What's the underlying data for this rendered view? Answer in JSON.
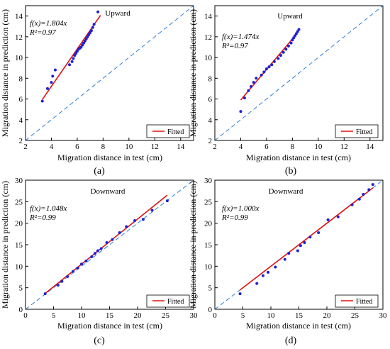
{
  "colors": {
    "points": "#1f1fd6",
    "fit": "#e01010",
    "diagonal": "#2b7bd6",
    "axis": "#000000"
  },
  "chart_data": [
    {
      "type": "scatter",
      "label": "(a)",
      "direction": "Upward",
      "xlabel": "Migration distance in test (cm)",
      "ylabel": "Migration distance in prediction (cm)",
      "xlim": [
        2,
        15
      ],
      "ylim": [
        2,
        15
      ],
      "xticks": [
        2,
        4,
        6,
        8,
        10,
        12,
        14
      ],
      "yticks": [
        2,
        4,
        6,
        8,
        10,
        12,
        14
      ],
      "equation": "f(x)=1.804x",
      "r2": "R²=0.97",
      "legend": "Fitted",
      "fit": {
        "x": [
          3.3,
          7.8
        ],
        "y": [
          5.95,
          14.07
        ]
      },
      "points": {
        "x": [
          3.3,
          3.7,
          4.0,
          4.1,
          4.3,
          5.4,
          5.6,
          5.7,
          5.8,
          5.9,
          6.0,
          6.1,
          6.2,
          6.3,
          6.4,
          6.5,
          6.6,
          6.7,
          6.8,
          6.9,
          7.0,
          7.1,
          7.2,
          7.3,
          7.6
        ],
        "y": [
          5.8,
          7.0,
          7.6,
          8.2,
          8.8,
          9.3,
          9.6,
          9.9,
          10.2,
          10.4,
          10.6,
          10.8,
          10.9,
          11.0,
          11.2,
          11.4,
          11.6,
          11.8,
          12.0,
          12.2,
          12.4,
          12.6,
          12.9,
          13.2,
          14.4
        ]
      }
    },
    {
      "type": "scatter",
      "label": "(b)",
      "direction": "Upward",
      "xlabel": "Migration distance in test (cm)",
      "ylabel": "Migration distance in prediction (cm)",
      "xlim": [
        2,
        15
      ],
      "ylim": [
        2,
        15
      ],
      "xticks": [
        2,
        4,
        6,
        8,
        10,
        12,
        14
      ],
      "yticks": [
        2,
        4,
        6,
        8,
        10,
        12,
        14
      ],
      "equation": "f(x)=1.474x",
      "r2": "R²=0.97",
      "legend": "Fitted",
      "fit": {
        "x": [
          4.0,
          8.1
        ],
        "y": [
          5.9,
          11.94
        ]
      },
      "points": {
        "x": [
          4.0,
          4.3,
          4.6,
          4.8,
          5.0,
          5.2,
          5.6,
          5.8,
          6.0,
          6.2,
          6.4,
          6.6,
          6.9,
          7.1,
          7.3,
          7.5,
          7.7,
          7.9,
          8.0,
          8.1,
          8.2,
          8.3,
          8.4,
          8.5
        ],
        "y": [
          4.8,
          6.1,
          6.8,
          7.2,
          7.6,
          8.0,
          8.3,
          8.6,
          8.9,
          9.1,
          9.3,
          9.6,
          9.9,
          10.2,
          10.5,
          10.8,
          11.1,
          11.4,
          11.7,
          11.9,
          12.1,
          12.3,
          12.5,
          12.7
        ]
      }
    },
    {
      "type": "scatter",
      "label": "(c)",
      "direction": "Downward",
      "xlabel": "Migration distance in test (cm)",
      "ylabel": "Migration distance in prediction (cm)",
      "xlim": [
        0,
        30
      ],
      "ylim": [
        0,
        30
      ],
      "xticks": [
        0,
        5,
        10,
        15,
        20,
        25,
        30
      ],
      "yticks": [
        0,
        5,
        10,
        15,
        20,
        25,
        30
      ],
      "equation": "f(x)=1.048x",
      "r2": "R²=0.99",
      "legend": "Fitted",
      "fit": {
        "x": [
          3.5,
          25.3
        ],
        "y": [
          3.67,
          26.51
        ]
      },
      "points": {
        "x": [
          3.5,
          5.8,
          6.5,
          7.5,
          8.5,
          9.3,
          10.0,
          10.8,
          11.8,
          12.4,
          12.9,
          13.5,
          14.5,
          15.5,
          16.8,
          18.0,
          19.5,
          21.0,
          22.6,
          25.3
        ],
        "y": [
          3.6,
          5.6,
          6.5,
          7.6,
          8.8,
          9.6,
          10.5,
          11.2,
          12.2,
          13.0,
          13.6,
          14.1,
          15.5,
          16.2,
          17.8,
          19.2,
          20.6,
          20.9,
          23.0,
          25.2
        ]
      }
    },
    {
      "type": "scatter",
      "label": "(d)",
      "direction": "Downward",
      "xlabel": "Migration distance in test (cm)",
      "ylabel": "Migration distance in prediction (cm)",
      "xlim": [
        0,
        30
      ],
      "ylim": [
        0,
        30
      ],
      "xticks": [
        0,
        5,
        10,
        15,
        20,
        25,
        30
      ],
      "yticks": [
        0,
        5,
        10,
        15,
        20,
        25,
        30
      ],
      "equation": "f(x)=1.000x",
      "r2": "R²=0.99",
      "legend": "Fitted",
      "fit": {
        "x": [
          4.5,
          28.2
        ],
        "y": [
          4.5,
          28.2
        ]
      },
      "points": {
        "x": [
          4.5,
          7.5,
          8.6,
          9.5,
          10.8,
          12.5,
          13.2,
          14.8,
          15.3,
          16.0,
          17.0,
          18.5,
          20.2,
          22.0,
          24.5,
          25.8,
          26.5,
          27.5,
          28.2
        ],
        "y": [
          3.6,
          6.0,
          7.8,
          8.6,
          9.8,
          11.6,
          13.0,
          13.6,
          14.8,
          15.5,
          16.8,
          17.8,
          20.8,
          21.5,
          24.3,
          25.6,
          26.7,
          27.8,
          29.0
        ]
      }
    }
  ]
}
